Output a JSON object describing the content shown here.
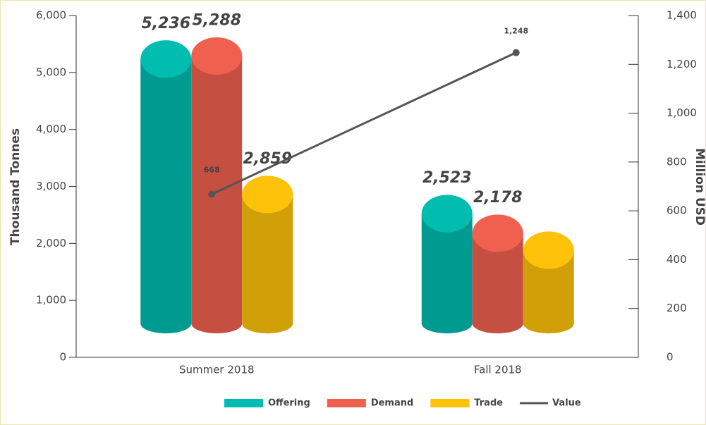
{
  "chart_data": {
    "type": "cylinder-bar",
    "categories": [
      "Summer 2018",
      "Fall 2018"
    ],
    "ylabel": "Thousand Tonnes",
    "y2label": "Million USD",
    "ylim": [
      0,
      6000
    ],
    "yticks": [
      0,
      {
        "value": 1000,
        "label": "1,000"
      },
      {
        "value": 2000,
        "label": "2,000"
      },
      {
        "value": 3000,
        "label": "3,000"
      },
      {
        "value": 4000,
        "label": "4,000"
      },
      {
        "value": 5000,
        "label": "5,000"
      },
      {
        "value": 6000,
        "label": "6,000"
      }
    ],
    "y2lim": [
      0,
      1400
    ],
    "y2ticks": [
      0,
      200,
      400,
      600,
      800,
      {
        "value": 1000,
        "label": "1,000"
      },
      {
        "value": 1200,
        "label": "1,200"
      },
      {
        "value": 1400,
        "label": "1,400"
      }
    ],
    "series": [
      {
        "name": "Offering",
        "color": "#00bdb0",
        "label_color": "#00857a",
        "values": [
          5236,
          2523
        ],
        "value_labels": [
          "5,236",
          "2,523"
        ]
      },
      {
        "name": "Demand",
        "color": "#f0604f",
        "label_color": "#d03a2a",
        "values": [
          5288,
          2178
        ],
        "value_labels": [
          "5,288",
          "2,178"
        ]
      },
      {
        "name": "Trade",
        "color": "#ffc20a",
        "label_color": "#e0a020",
        "values": [
          2859,
          1880
        ],
        "value_labels": [
          "2,859",
          null
        ]
      },
      {
        "name": "Value",
        "color": "#555555",
        "type": "line",
        "axis": "y2",
        "values": [
          668,
          1248
        ],
        "value_labels": [
          "668",
          "1,248"
        ]
      }
    ]
  }
}
